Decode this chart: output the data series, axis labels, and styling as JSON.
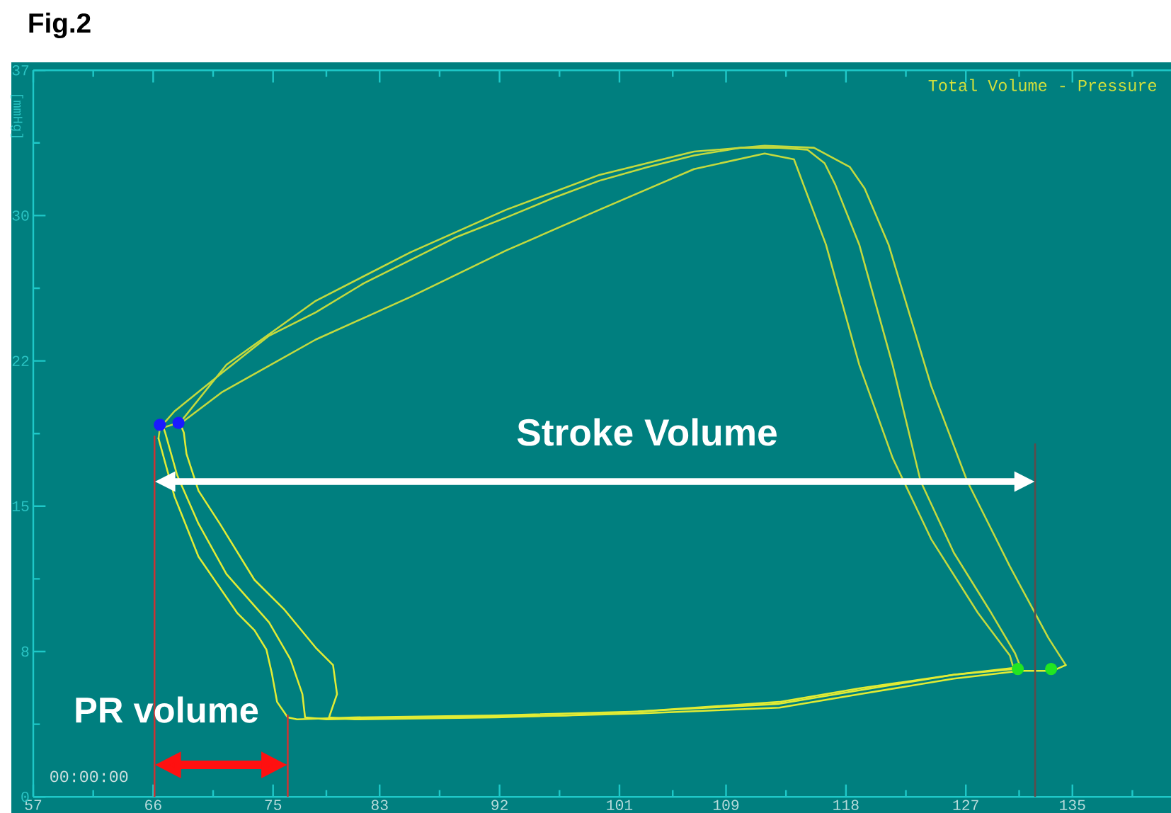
{
  "chart_data": {
    "type": "line",
    "title": "Total Volume - Pressure",
    "ylabel": "[mmHg]",
    "xlim": [
      57,
      142.4
    ],
    "ylim": [
      0,
      37.5
    ],
    "xticks": [
      57,
      {
        "value": 61.5,
        "label": null
      },
      66,
      {
        "value": 70.5,
        "label": null
      },
      75,
      {
        "value": 79,
        "label": null
      },
      83,
      {
        "value": 87.5,
        "label": null
      },
      92,
      {
        "value": 96.5,
        "label": null
      },
      101,
      {
        "value": 105,
        "label": null
      },
      109,
      {
        "value": 113.5,
        "label": null
      },
      118,
      {
        "value": 122.5,
        "label": null
      },
      127,
      {
        "value": 131,
        "label": null
      },
      135,
      {
        "value": 139.5,
        "label": null
      }
    ],
    "yticks": [
      0,
      {
        "value": 3.75,
        "label": null
      },
      {
        "value": 7.5,
        "label": "8"
      },
      {
        "value": 11.25,
        "label": null
      },
      15,
      {
        "value": 18.75,
        "label": null
      },
      {
        "value": 22.5,
        "label": "22"
      },
      {
        "value": 26.25,
        "label": null
      },
      30,
      {
        "value": 33.75,
        "label": null
      },
      {
        "value": 37.5,
        "label": "37"
      }
    ],
    "series": [
      {
        "color": "#c4da3e",
        "x": [
          66.7,
          67.6,
          71.2,
          74.7,
          78.2,
          81.8,
          85.3,
          88.8,
          92.5,
          96.0,
          99.5,
          103.1,
          106.6,
          110.1,
          113.0,
          115.1,
          116.4,
          117.2,
          119.0,
          121.5,
          123.6,
          126.1,
          128.9,
          130.7,
          131.1
        ],
        "values": [
          19.2,
          19.9,
          21.9,
          23.8,
          25.0,
          26.5,
          27.7,
          28.9,
          29.9,
          30.9,
          31.8,
          32.5,
          33.1,
          33.5,
          33.5,
          33.4,
          32.7,
          31.6,
          28.5,
          22.3,
          16.3,
          12.6,
          9.5,
          7.4,
          6.7
        ]
      },
      {
        "color": "#e2ec34",
        "x": [
          66.7,
          66.9,
          67.8,
          69.4,
          71.5,
          74.7,
          76.3,
          77.2,
          77.4,
          79.0,
          86.4,
          97.0,
          107.7,
          113.0,
          119.0,
          126.1,
          131.1
        ],
        "values": [
          19.2,
          18.8,
          16.6,
          14.1,
          11.5,
          9.0,
          7.1,
          5.3,
          4.1,
          4.0,
          4.1,
          4.2,
          4.6,
          4.8,
          5.5,
          6.3,
          6.7
        ]
      },
      {
        "color": "#c4da3e",
        "x": [
          68.0,
          71.5,
          78.2,
          85.3,
          92.5,
          99.5,
          106.6,
          111.9,
          115.6,
          118.3,
          119.4,
          121.2,
          124.4,
          127.1,
          130.3,
          133.2,
          134.5
        ],
        "values": [
          19.3,
          22.3,
          25.6,
          28.1,
          30.3,
          32.1,
          33.3,
          33.6,
          33.5,
          32.5,
          31.4,
          28.5,
          21.2,
          16.3,
          11.9,
          8.2,
          6.8
        ]
      },
      {
        "color": "#e2ec34",
        "x": [
          68.0,
          68.3,
          68.5,
          69.4,
          71.0,
          73.6,
          75.8,
          78.2,
          79.5,
          79.8,
          79.2,
          81.1,
          91.7,
          102.4,
          113.0,
          119.0,
          126.1,
          131.1,
          133.5,
          134.5
        ],
        "values": [
          19.3,
          18.8,
          17.7,
          15.8,
          14.1,
          11.2,
          9.7,
          7.7,
          6.8,
          5.3,
          4.1,
          4.0,
          4.1,
          4.3,
          4.6,
          5.3,
          6.1,
          6.5,
          6.5,
          6.8
        ]
      },
      {
        "color": "#c4da3e",
        "x": [
          66.4,
          66.5,
          68.3,
          71.2,
          78.2,
          85.3,
          92.5,
          99.5,
          106.6,
          111.9,
          114.1,
          116.5,
          119.0,
          121.5,
          124.4,
          127.9,
          130.3,
          130.6
        ],
        "values": [
          18.5,
          19.0,
          19.4,
          20.9,
          23.6,
          25.8,
          28.2,
          30.3,
          32.4,
          33.2,
          32.9,
          28.5,
          22.3,
          17.5,
          13.3,
          9.5,
          7.3,
          6.6
        ]
      },
      {
        "color": "#e2ec34",
        "x": [
          66.4,
          67.6,
          69.4,
          72.3,
          73.6,
          74.5,
          74.9,
          75.3,
          76.1,
          76.8,
          81.1,
          91.7,
          102.4,
          113.0,
          119.0,
          126.1,
          130.6
        ],
        "values": [
          18.5,
          15.5,
          12.4,
          9.5,
          8.6,
          7.6,
          6.4,
          4.9,
          4.1,
          4.0,
          4.1,
          4.2,
          4.4,
          4.9,
          5.6,
          6.3,
          6.6
        ]
      },
      {
        "color": "#cc3333",
        "x": [
          66.1,
          66.1
        ],
        "values": [
          0,
          18.6
        ]
      },
      {
        "color": "#cc3333",
        "x": [
          76.1,
          76.1
        ],
        "values": [
          0,
          4.2
        ]
      },
      {
        "color": "#5e4b4b",
        "x": [
          132.2,
          132.2
        ],
        "values": [
          0,
          18.2
        ]
      },
      {
        "type": "scatter",
        "marker": "circle",
        "color": "#1a1aff",
        "x": [
          66.5,
          67.9
        ],
        "values": [
          19.2,
          19.3
        ]
      },
      {
        "type": "scatter",
        "marker": "circle",
        "color": "#22e622",
        "x": [
          130.9,
          133.4
        ],
        "values": [
          6.6,
          6.6
        ]
      }
    ],
    "annotations": [
      "Stroke Volume",
      "PR volume",
      "00:00:00",
      "Fig.2"
    ]
  }
}
